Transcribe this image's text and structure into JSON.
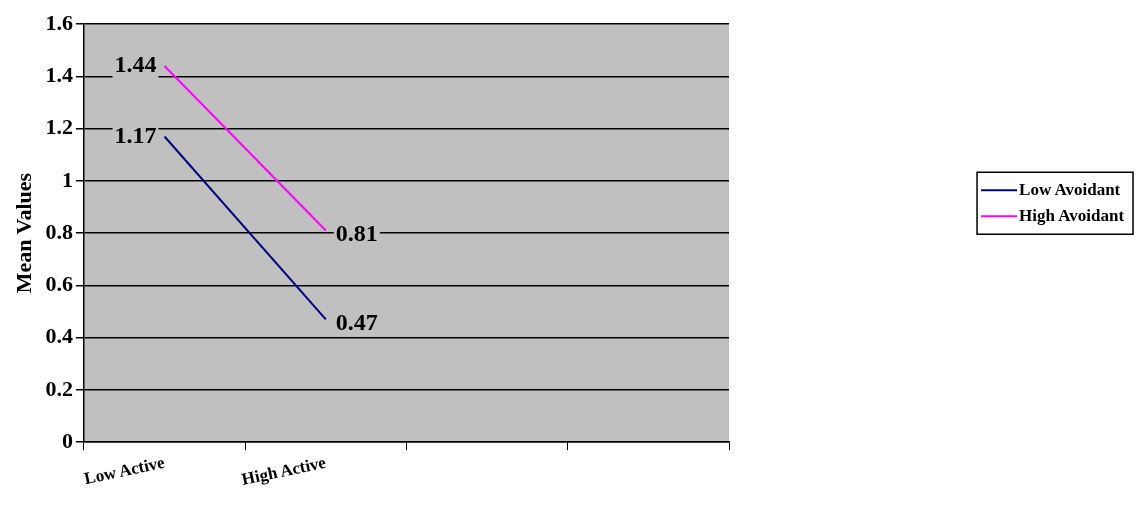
{
  "chart_data": {
    "type": "line",
    "ylabel": "Mean Values",
    "categories": [
      "Low Active",
      "High Active",
      null,
      null
    ],
    "series": [
      {
        "name": "Low Avoidant",
        "color": "#000080",
        "values": [
          1.17,
          0.47,
          null,
          null
        ]
      },
      {
        "name": "High Avoidant",
        "color": "#ff00ff",
        "values": [
          1.44,
          0.81,
          null,
          null
        ]
      }
    ],
    "ylim": [
      0,
      1.6
    ],
    "yticks": [
      0,
      0.2,
      0.4,
      0.6,
      0.8,
      1,
      1.2,
      1.4,
      1.6
    ],
    "grid": "y",
    "legend": "right",
    "data_labels": true,
    "marker": "none",
    "line_style": "solid"
  }
}
